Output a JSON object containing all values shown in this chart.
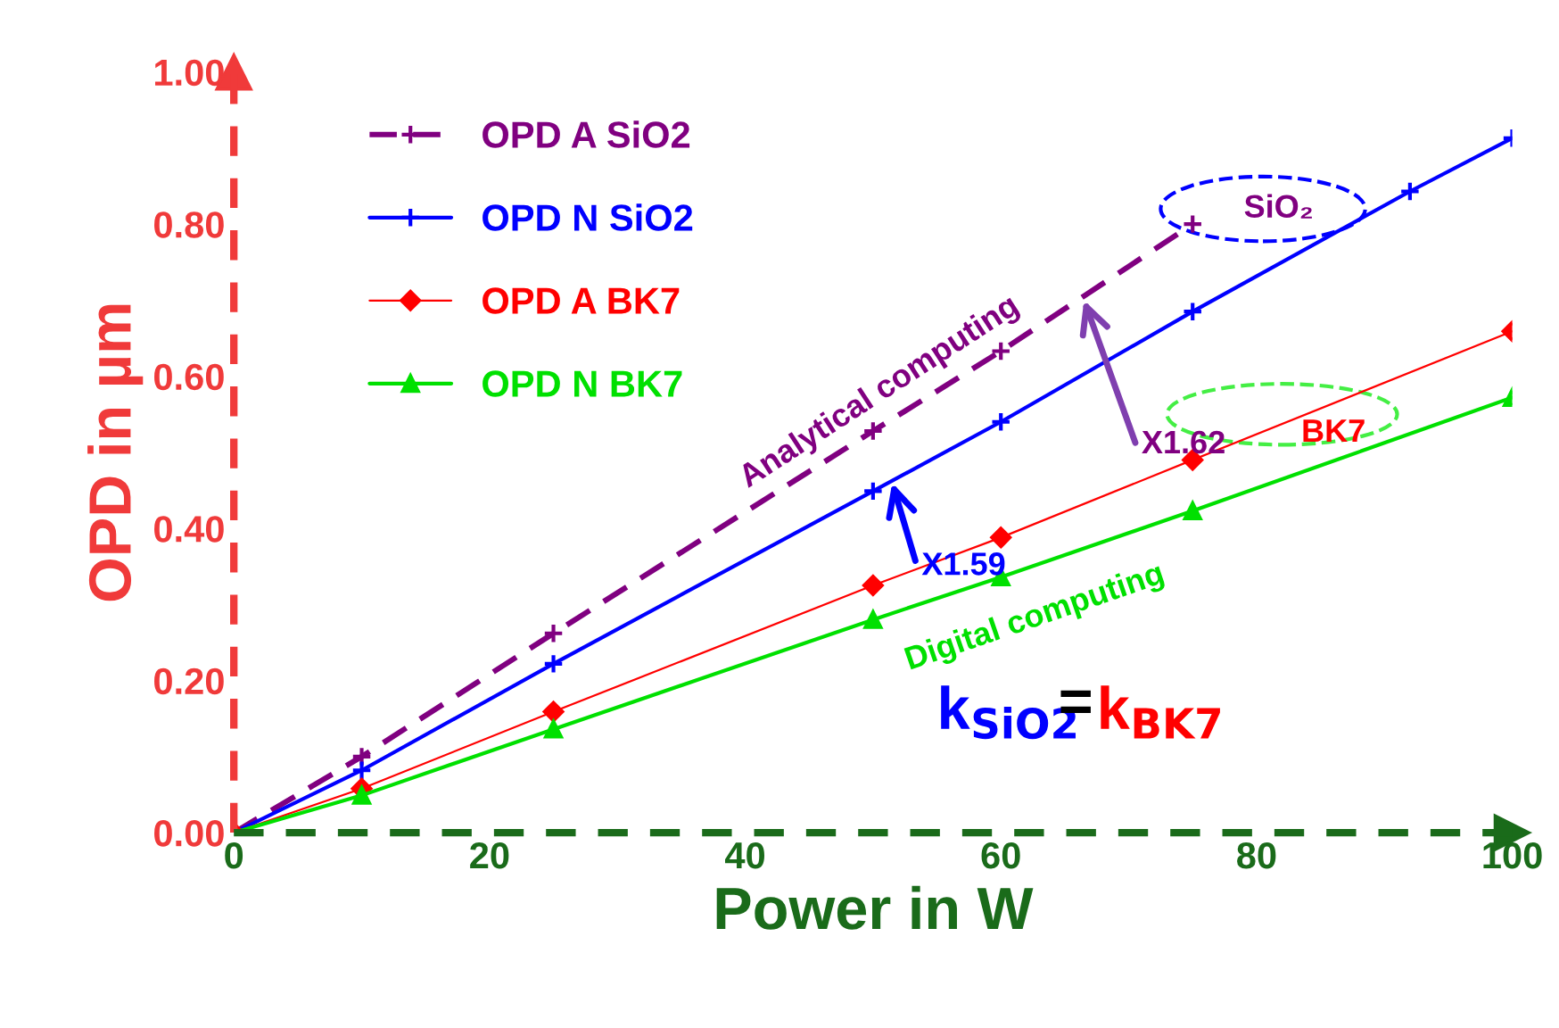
{
  "chart_data": {
    "type": "line",
    "xlabel": "Power in W",
    "ylabel": "OPD in µm",
    "xlim": [
      0,
      100
    ],
    "xticks": [
      0,
      20,
      40,
      60,
      80,
      100
    ],
    "ylim": [
      0,
      1
    ],
    "yticks": [
      {
        "value": 0,
        "label": "0.00"
      },
      {
        "value": 0.2,
        "label": "0.20"
      },
      {
        "value": 0.4,
        "label": "0.40"
      },
      {
        "value": 0.6,
        "label": "0.60"
      },
      {
        "value": 0.8,
        "label": "0.80"
      },
      {
        "value": 1,
        "label": "1.00"
      }
    ],
    "grid": false,
    "legend": "top left",
    "series": [
      {
        "name": "OPD A SiO2",
        "color": "#800080",
        "marker": "cross",
        "line_style": "dashed",
        "x": [
          0,
          10,
          25,
          50,
          60,
          75
        ],
        "values": [
          0,
          0.1,
          0.262,
          0.528,
          0.633,
          0.8
        ]
      },
      {
        "name": "OPD N SiO2",
        "color": "#0000ff",
        "marker": "cross",
        "line_style": "solid",
        "x": [
          0,
          10,
          25,
          50,
          60,
          75,
          92,
          100
        ],
        "values": [
          0,
          0.082,
          0.222,
          0.449,
          0.54,
          0.685,
          0.843,
          0.913
        ]
      },
      {
        "name": "OPD A BK7",
        "color": "#ff0000",
        "marker": "diamond",
        "line_style": "solid",
        "x": [
          0,
          10,
          25,
          50,
          60,
          75,
          100
        ],
        "values": [
          0,
          0.058,
          0.159,
          0.325,
          0.388,
          0.49,
          0.659
        ]
      },
      {
        "name": "OPD N BK7",
        "color": "#00e000",
        "marker": "triangle",
        "line_style": "solid",
        "x": [
          0,
          10,
          25,
          50,
          60,
          75,
          100
        ],
        "values": [
          0,
          0.049,
          0.136,
          0.28,
          0.336,
          0.423,
          0.572
        ]
      }
    ],
    "annotations": [
      "Analytical computing",
      "Digital computing",
      {
        "text": "X1.59",
        "x": 51.5,
        "y": 0.46
      },
      {
        "text": "X1.62",
        "x": 66.5,
        "y": 0.7
      },
      "SiO₂",
      "BK7",
      "k$_{SiO2}$",
      "=",
      "k$_{BK7}$"
    ]
  }
}
